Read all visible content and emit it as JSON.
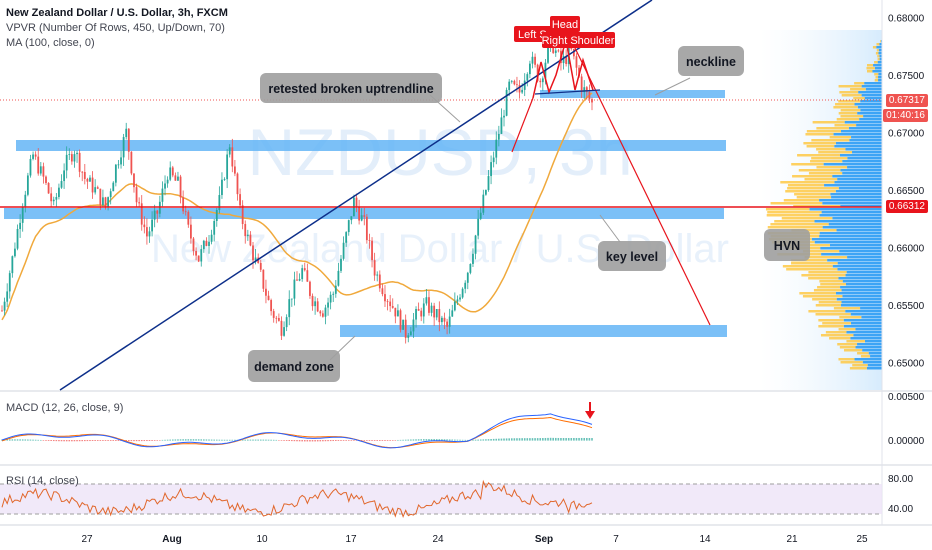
{
  "header": {
    "title": "New Zealand Dollar / U.S. Dollar, 3h, FXCM",
    "indicator_vpvr": "VPVR (Number Of Rows, 450, Up/Down, 70)",
    "indicator_ma": "MA (100, close, 0)",
    "macd_label": "MACD (12, 26, close, 9)",
    "rsi_label": "RSI (14, close)"
  },
  "watermark": {
    "symbol": "NZDUSD, 3h",
    "name": "New Zealand Dollar / U.S. Dollar"
  },
  "price_tags": {
    "current": "0.67317",
    "countdown": "01:40:16",
    "key_level": "0.66312"
  },
  "annotations": {
    "retest": "retested broken uptrendline",
    "neckline": "neckline",
    "key_level": "key level",
    "hvn": "HVN",
    "demand": "demand zone",
    "left_shoulder": "Left S",
    "head": "Head",
    "right_shoulder": "Right Shoulder"
  },
  "colors": {
    "up_candle": "#26a69a",
    "down_candle": "#ef5350",
    "zone": "#64b5f6",
    "trendline": "#0d2f8a",
    "key_level": "#e8141c",
    "ma": "#f0a93c",
    "macd": "#2962ff",
    "signal": "#ff6d00",
    "rsi": "#e1672c",
    "volume_up": "#2196f3",
    "volume_down": "#ffc63a"
  },
  "chart_data": [
    {
      "type": "candlestick",
      "title": "New Zealand Dollar / U.S. Dollar, 3h, FXCM",
      "y_ticks": [
        "0.65000",
        "0.65500",
        "0.66000",
        "0.66500",
        "0.67000",
        "0.67500",
        "0.68000"
      ],
      "ylim": [
        0.6475,
        0.6815
      ],
      "x_ticks": [
        "27",
        "Aug",
        "10",
        "17",
        "24",
        "Sep",
        "7",
        "14",
        "21",
        "25"
      ],
      "close_path": [
        [
          0,
          0.6545
        ],
        [
          4,
          0.659
        ],
        [
          8,
          0.664
        ],
        [
          12,
          0.668
        ],
        [
          16,
          0.666
        ],
        [
          20,
          0.6635
        ],
        [
          24,
          0.667
        ],
        [
          28,
          0.6685
        ],
        [
          32,
          0.666
        ],
        [
          36,
          0.665
        ],
        [
          40,
          0.6635
        ],
        [
          44,
          0.667
        ],
        [
          48,
          0.67
        ],
        [
          52,
          0.664
        ],
        [
          56,
          0.661
        ],
        [
          60,
          0.663
        ],
        [
          64,
          0.6665
        ],
        [
          68,
          0.6655
        ],
        [
          72,
          0.6615
        ],
        [
          76,
          0.659
        ],
        [
          80,
          0.661
        ],
        [
          84,
          0.664
        ],
        [
          88,
          0.669
        ],
        [
          92,
          0.663
        ],
        [
          96,
          0.66
        ],
        [
          100,
          0.6575
        ],
        [
          104,
          0.6545
        ],
        [
          108,
          0.653
        ],
        [
          112,
          0.656
        ],
        [
          116,
          0.658
        ],
        [
          120,
          0.6555
        ],
        [
          124,
          0.6545
        ],
        [
          128,
          0.656
        ],
        [
          132,
          0.66
        ],
        [
          136,
          0.664
        ],
        [
          140,
          0.662
        ],
        [
          144,
          0.658
        ],
        [
          148,
          0.656
        ],
        [
          152,
          0.6545
        ],
        [
          156,
          0.6525
        ],
        [
          160,
          0.654
        ],
        [
          164,
          0.655
        ],
        [
          168,
          0.654
        ],
        [
          172,
          0.653
        ],
        [
          176,
          0.6555
        ],
        [
          180,
          0.658
        ],
        [
          184,
          0.662
        ],
        [
          188,
          0.666
        ],
        [
          192,
          0.67
        ],
        [
          196,
          0.674
        ],
        [
          200,
          0.6735
        ],
        [
          204,
          0.6765
        ],
        [
          208,
          0.6745
        ],
        [
          212,
          0.678
        ],
        [
          216,
          0.676
        ],
        [
          220,
          0.677
        ],
        [
          224,
          0.674
        ],
        [
          228,
          0.6725
        ]
      ],
      "moving_average_label": "MA (100, close, 0)",
      "levels": [
        {
          "name": "neckline",
          "price": 0.6737
        },
        {
          "name": "key level",
          "price": 0.66312
        },
        {
          "name": "resistance zone",
          "price": 0.6688
        },
        {
          "name": "demand zone",
          "price": 0.6518
        }
      ],
      "projection": {
        "from": 0.6765,
        "to": 0.652,
        "to_date": "14"
      }
    },
    {
      "type": "line",
      "title": "MACD (12, 26, close, 9)",
      "y_ticks": [
        "0.00500",
        "0.00000"
      ]
    },
    {
      "type": "line",
      "title": "RSI (14, close)",
      "y_ticks": [
        "80.00",
        "40.00"
      ]
    }
  ]
}
